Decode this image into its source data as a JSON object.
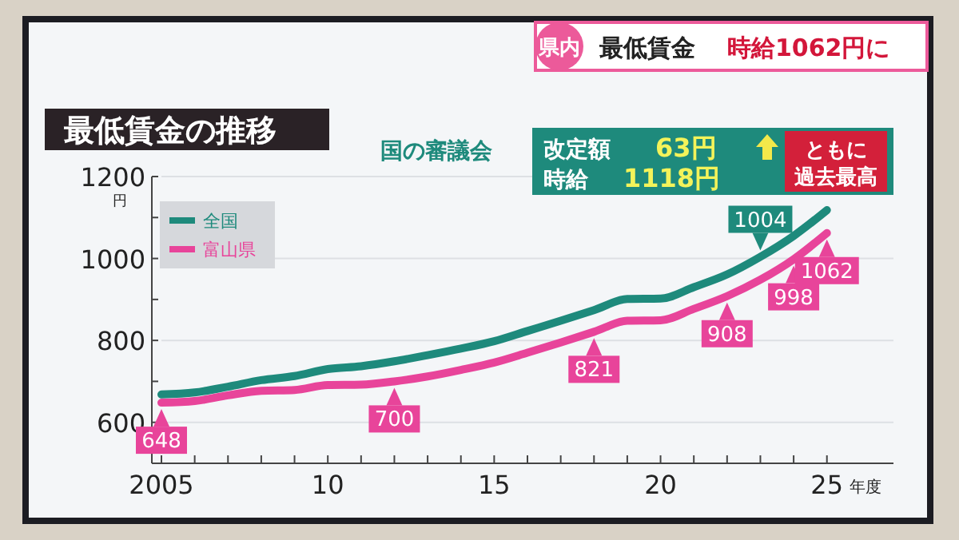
{
  "chart_data": {
    "type": "line",
    "title": "最低賃金の推移",
    "xlabel": "年度",
    "ylabel": "円",
    "annotations": [
      "県内",
      "最低賃金",
      "時給1062円に",
      "国の審議会",
      "改定額",
      "63円",
      "時給",
      "1118円",
      "ともに",
      "過去最高"
    ],
    "x": [
      2005,
      2006,
      2007,
      2008,
      2009,
      2010,
      2011,
      2012,
      2013,
      2014,
      2015,
      2016,
      2017,
      2018,
      2019,
      2020,
      2021,
      2022,
      2023,
      2024,
      2025
    ],
    "series": [
      {
        "name": "全国",
        "color": "#1e8a7c",
        "values": [
          668,
          673,
          687,
          703,
          713,
          730,
          737,
          749,
          764,
          780,
          798,
          823,
          848,
          874,
          901,
          902,
          930,
          961,
          1004,
          1055,
          1118
        ],
        "value_labels": [
          null,
          null,
          null,
          null,
          null,
          null,
          null,
          null,
          null,
          null,
          null,
          null,
          null,
          null,
          null,
          null,
          null,
          null,
          "1004",
          null,
          null
        ]
      },
      {
        "name": "富山県",
        "color": "#e8449a",
        "values": [
          648,
          652,
          666,
          677,
          679,
          691,
          692,
          700,
          712,
          728,
          746,
          770,
          795,
          821,
          848,
          849,
          877,
          908,
          948,
          998,
          1062
        ],
        "value_labels": [
          "648",
          null,
          null,
          null,
          null,
          null,
          null,
          "700",
          null,
          null,
          null,
          null,
          null,
          "821",
          null,
          null,
          null,
          "908",
          null,
          "998",
          "1062"
        ]
      }
    ],
    "xlim": [
      2005,
      2027
    ],
    "ylim": [
      500,
      1200
    ],
    "xticks": [
      {
        "value": 2005,
        "label": "2005"
      },
      {
        "value": 2006,
        "label": null
      },
      {
        "value": 2007,
        "label": null
      },
      {
        "value": 2008,
        "label": null
      },
      {
        "value": 2009,
        "label": null
      },
      {
        "value": 2010,
        "label": "10"
      },
      {
        "value": 2011,
        "label": null
      },
      {
        "value": 2012,
        "label": null
      },
      {
        "value": 2013,
        "label": null
      },
      {
        "value": 2014,
        "label": null
      },
      {
        "value": 2015,
        "label": "15"
      },
      {
        "value": 2016,
        "label": null
      },
      {
        "value": 2017,
        "label": null
      },
      {
        "value": 2018,
        "label": null
      },
      {
        "value": 2019,
        "label": null
      },
      {
        "value": 2020,
        "label": "20"
      },
      {
        "value": 2021,
        "label": null
      },
      {
        "value": 2022,
        "label": null
      },
      {
        "value": 2023,
        "label": null
      },
      {
        "value": 2024,
        "label": null
      },
      {
        "value": 2025,
        "label": "25"
      }
    ],
    "yticks": [
      600,
      {
        "value": 700,
        "label": null
      },
      800,
      {
        "value": 900,
        "label": null
      },
      1000,
      {
        "value": 1100,
        "label": null
      },
      1200
    ],
    "grid": "y",
    "legend": "top left",
    "marker": "none",
    "line_style": "solid"
  }
}
